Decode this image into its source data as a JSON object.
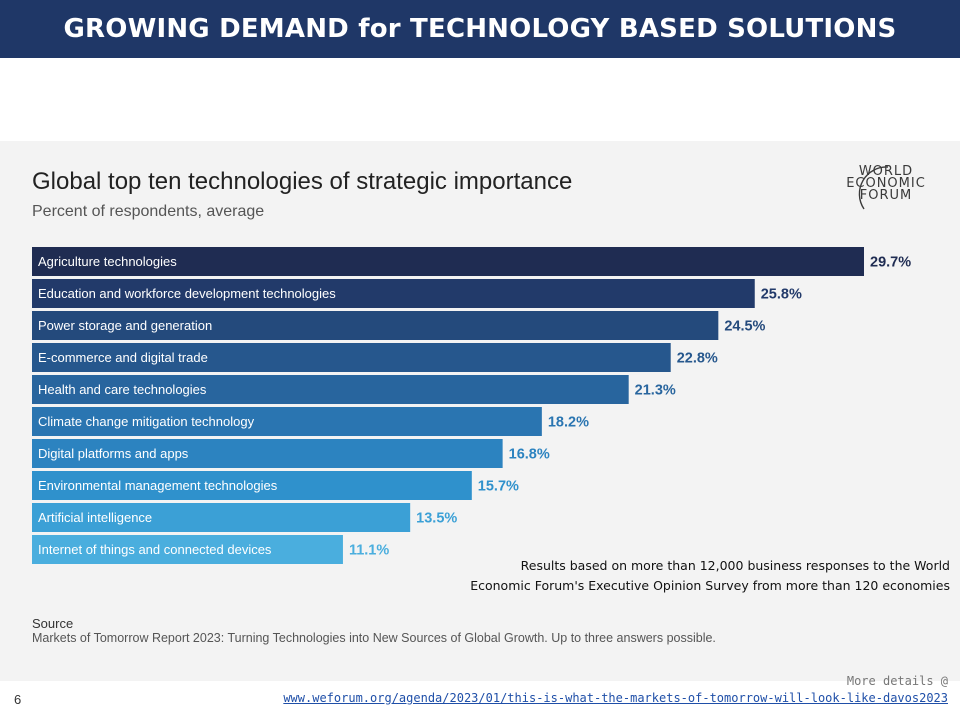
{
  "slide": {
    "title": "GROWING DEMAND for TECHNOLOGY BASED SOLUTIONS",
    "page_number": "6",
    "note_line1": "Results based on more than 12,000 business responses to the World",
    "note_line2": "Economic Forum's Executive Opinion Survey from more than 120 economies",
    "more_details": "More details @",
    "link": "www.weforum.org/agenda/2023/01/this-is-what-the-markets-of-tomorrow-will-look-like-davos2023"
  },
  "logo": {
    "line1": "WORLD",
    "line2": "ECONOMIC",
    "line3": "FORUM"
  },
  "source": {
    "label": "Source",
    "text": "Markets of Tomorrow Report 2023: Turning Technologies into New Sources of Global Growth. Up to three answers possible."
  },
  "chart_data": {
    "type": "bar",
    "orientation": "horizontal",
    "title": "Global top ten technologies of strategic importance",
    "subtitle": "Percent of respondents, average",
    "categories": [
      "Agriculture technologies",
      "Education and workforce development technologies",
      "Power storage and generation",
      "E-commerce and digital trade",
      "Health and care technologies",
      "Climate change mitigation technology",
      "Digital platforms and apps",
      "Environmental management technologies",
      "Artificial intelligence",
      "Internet of things and connected devices"
    ],
    "values": [
      29.7,
      25.8,
      24.5,
      22.8,
      21.3,
      18.2,
      16.8,
      15.7,
      13.5,
      11.1
    ],
    "value_labels": [
      "29.7%",
      "25.8%",
      "24.5%",
      "22.8%",
      "21.3%",
      "18.2%",
      "16.8%",
      "15.7%",
      "13.5%",
      "11.1%"
    ],
    "colors": [
      "#1f2c52",
      "#223a6a",
      "#244a7c",
      "#26578d",
      "#28659e",
      "#2a75b1",
      "#2c83c0",
      "#2f91cc",
      "#3ba0d6",
      "#4aaede"
    ],
    "label_colors": [
      "#1f2c52",
      "#223a6a",
      "#244a7c",
      "#26578d",
      "#28659e",
      "#2a75b1",
      "#2c83c0",
      "#2f91cc",
      "#3ba0d6",
      "#4aaede"
    ],
    "xlim": [
      0,
      29.7
    ],
    "grid": false,
    "legend": "none"
  }
}
